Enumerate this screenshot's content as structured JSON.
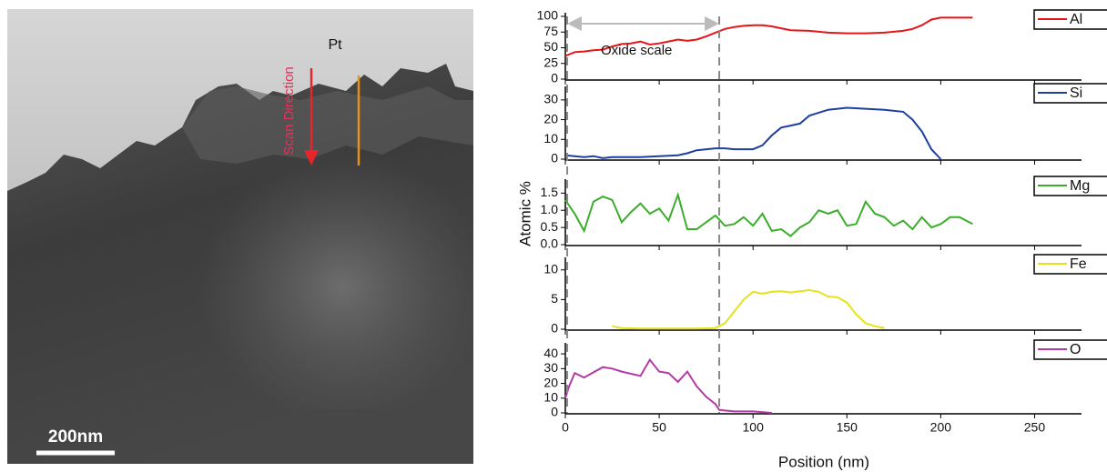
{
  "image": {
    "pt_label": "Pt",
    "scan_label": "Scan Direction",
    "scale_bar": "200nm"
  },
  "figure": {
    "ylabel": "Atomic %",
    "xlabel": "Position (nm)",
    "annotation": "Oxide scale",
    "reference_lines": [
      1,
      82
    ]
  },
  "chart_data": [
    {
      "type": "line",
      "xlim": [
        0,
        275
      ],
      "xticks": [
        0,
        50,
        100,
        150,
        200,
        250
      ],
      "ylim": [
        0,
        100
      ],
      "yticks": [
        0,
        25,
        50,
        75,
        100
      ],
      "x": [
        0,
        5,
        10,
        15,
        20,
        25,
        30,
        35,
        40,
        45,
        50,
        55,
        60,
        65,
        70,
        75,
        80,
        85,
        90,
        95,
        100,
        105,
        110,
        120,
        130,
        140,
        150,
        160,
        170,
        180,
        185,
        190,
        195,
        200,
        210,
        217
      ],
      "series": [
        {
          "name": "Al",
          "color": "#e8141b",
          "values": [
            37,
            43,
            44,
            46,
            47,
            52,
            56,
            57,
            60,
            55,
            57,
            60,
            63,
            61,
            63,
            68,
            74,
            80,
            83,
            85,
            86,
            86,
            84,
            78,
            77,
            74,
            73,
            73,
            74,
            77,
            80,
            86,
            95,
            98,
            98,
            98
          ]
        }
      ]
    },
    {
      "type": "line",
      "xlim": [
        0,
        275
      ],
      "xticks": [
        0,
        50,
        100,
        150,
        200,
        250
      ],
      "ylim": [
        0,
        35
      ],
      "yticks": [
        0,
        10,
        20,
        30
      ],
      "x": [
        0,
        5,
        10,
        15,
        20,
        25,
        30,
        40,
        50,
        60,
        65,
        70,
        80,
        85,
        90,
        100,
        105,
        110,
        115,
        120,
        125,
        130,
        140,
        150,
        160,
        170,
        180,
        185,
        190,
        195,
        200
      ],
      "series": [
        {
          "name": "Si",
          "color": "#1f3fa0",
          "values": [
            2,
            1.5,
            1,
            1.5,
            0.5,
            1,
            1,
            1,
            1.5,
            2,
            3,
            4.5,
            5.5,
            5.5,
            5,
            5,
            7,
            12,
            16,
            17,
            18,
            22,
            25,
            26,
            25.5,
            25,
            24,
            20,
            14,
            5,
            0
          ]
        }
      ]
    },
    {
      "type": "line",
      "xlim": [
        0,
        275
      ],
      "xticks": [
        0,
        50,
        100,
        150,
        200,
        250
      ],
      "ylim": [
        0,
        1.8
      ],
      "yticks": [
        {
          "value": 0,
          "label": "0.0"
        },
        0.5,
        {
          "value": 1,
          "label": "1.0"
        },
        1.5
      ],
      "x": [
        0,
        5,
        10,
        15,
        20,
        25,
        30,
        35,
        40,
        45,
        50,
        55,
        60,
        65,
        70,
        75,
        80,
        85,
        90,
        95,
        100,
        105,
        110,
        115,
        120,
        125,
        130,
        135,
        140,
        145,
        150,
        155,
        160,
        165,
        170,
        175,
        180,
        185,
        190,
        195,
        200,
        205,
        210,
        217
      ],
      "series": [
        {
          "name": "Mg",
          "color": "#3aae2a",
          "values": [
            1.3,
            0.9,
            0.4,
            1.25,
            1.4,
            1.3,
            0.65,
            0.95,
            1.2,
            0.9,
            1.05,
            0.7,
            1.45,
            0.45,
            0.45,
            0.65,
            0.85,
            0.55,
            0.6,
            0.8,
            0.55,
            0.9,
            0.4,
            0.45,
            0.25,
            0.5,
            0.65,
            1.0,
            0.9,
            1.0,
            0.55,
            0.6,
            1.25,
            0.9,
            0.8,
            0.55,
            0.7,
            0.45,
            0.8,
            0.5,
            0.6,
            0.8,
            0.8,
            0.6
          ]
        }
      ]
    },
    {
      "type": "line",
      "xlim": [
        0,
        275
      ],
      "xticks": [
        0,
        50,
        100,
        150,
        200,
        250
      ],
      "ylim": [
        0,
        11.5
      ],
      "yticks": [
        0,
        5,
        10
      ],
      "x": [
        25,
        30,
        40,
        50,
        60,
        70,
        80,
        85,
        90,
        95,
        100,
        105,
        110,
        115,
        120,
        125,
        130,
        135,
        140,
        145,
        150,
        155,
        160,
        165,
        170
      ],
      "series": [
        {
          "name": "Fe",
          "color": "#e6e21a",
          "values": [
            0.5,
            0.2,
            0.1,
            0.1,
            0.1,
            0.1,
            0.2,
            1,
            3,
            5,
            6.3,
            6,
            6.3,
            6.4,
            6.2,
            6.4,
            6.6,
            6.3,
            5.5,
            5.4,
            4.5,
            2.5,
            1,
            0.5,
            0.2
          ]
        }
      ]
    },
    {
      "type": "line",
      "xlim": [
        0,
        275
      ],
      "xticks": [
        0,
        50,
        100,
        150,
        200,
        250
      ],
      "ylim": [
        0,
        45
      ],
      "yticks": [
        0,
        10,
        20,
        30,
        40
      ],
      "x": [
        0,
        2,
        5,
        10,
        20,
        25,
        30,
        40,
        45,
        50,
        55,
        60,
        65,
        70,
        75,
        80,
        82,
        90,
        100,
        110
      ],
      "series": [
        {
          "name": "O",
          "color": "#b33aa6",
          "values": [
            10,
            18,
            27,
            24,
            31,
            30,
            28,
            25,
            36,
            28,
            27,
            21,
            28,
            18,
            11,
            6,
            2,
            1,
            1,
            0
          ]
        }
      ]
    }
  ]
}
